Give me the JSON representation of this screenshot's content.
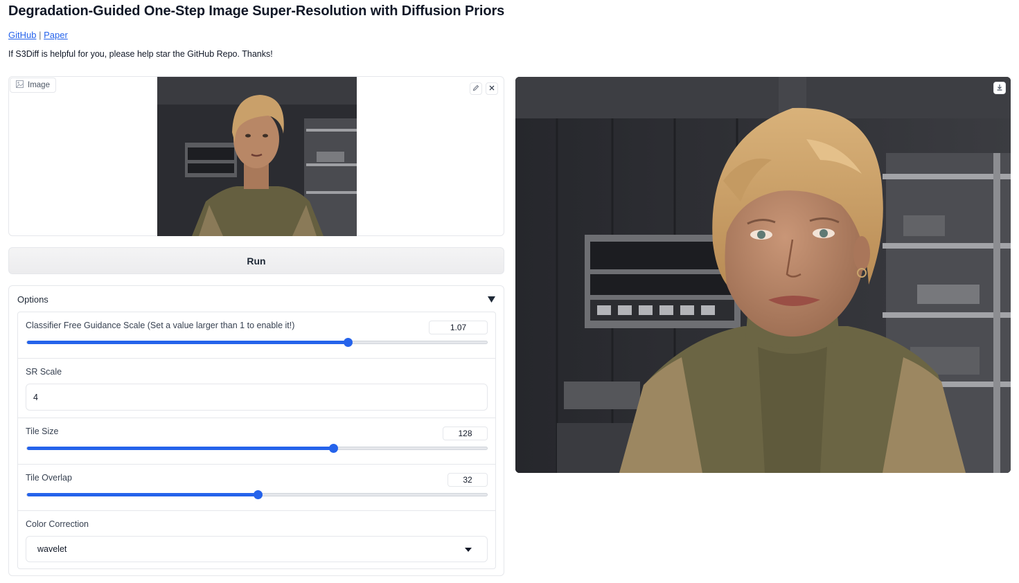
{
  "header": {
    "title": "Degradation-Guided One-Step Image Super-Resolution with Diffusion Priors",
    "links": [
      {
        "label": "GitHub"
      },
      {
        "label": "Paper"
      }
    ],
    "link_separator": "|",
    "note": "If S3Diff is helpful for you, please help star the GitHub Repo. Thanks!"
  },
  "input_image": {
    "label": "Image",
    "label_icon": "image-icon",
    "tools": [
      "edit-icon",
      "close-icon"
    ]
  },
  "run_button": {
    "label": "Run"
  },
  "options": {
    "title": "Options",
    "toggle_icon": "triangle-down-icon",
    "cfg": {
      "label": "Classifier Free Guidance Scale (Set a value larger than 1 to enable it!)",
      "value": "1.07",
      "fraction": 0.697
    },
    "sr_scale": {
      "label": "SR Scale",
      "value": "4"
    },
    "tile_size": {
      "label": "Tile Size",
      "value": "128",
      "fraction": 0.665
    },
    "tile_overlap": {
      "label": "Tile Overlap",
      "value": "32",
      "fraction": 0.502
    },
    "color_correction": {
      "label": "Color Correction",
      "value": "wavelet",
      "caret_icon": "caret-down-icon"
    }
  },
  "output_image": {
    "download_icon": "download-icon"
  },
  "colors": {
    "accent": "#2563eb",
    "track": "#e5e7eb",
    "border": "#e5e7eb"
  }
}
